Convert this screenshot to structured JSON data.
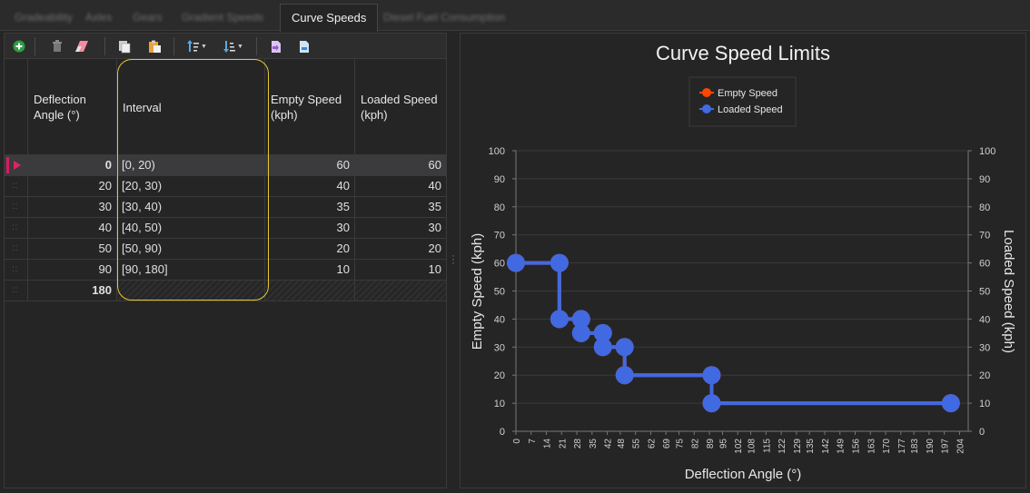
{
  "tabs": [
    {
      "label": "Gradeability",
      "active": false
    },
    {
      "label": "Axles",
      "active": false
    },
    {
      "label": "Gears",
      "active": false
    },
    {
      "label": "Gradient Speeds",
      "active": false
    },
    {
      "label": "Curve Speeds",
      "active": true
    },
    {
      "label": "Diesel Fuel Consumption",
      "active": false
    }
  ],
  "toolbar": {
    "icons": [
      "add-icon",
      "delete-icon",
      "eraser-icon",
      "copy-icon",
      "paste-icon",
      "sort-ascending-icon",
      "sort-descending-icon",
      "import-icon",
      "export-icon"
    ]
  },
  "grid": {
    "columns": [
      "Deflection Angle (°)",
      "Interval",
      "Empty Speed (kph)",
      "Loaded Speed (kph)"
    ],
    "rows": [
      {
        "angle": "0",
        "interval": "[0, 20)",
        "empty": "60",
        "loaded": "60"
      },
      {
        "angle": "20",
        "interval": "[20, 30)",
        "empty": "40",
        "loaded": "40"
      },
      {
        "angle": "30",
        "interval": "[30, 40)",
        "empty": "35",
        "loaded": "35"
      },
      {
        "angle": "40",
        "interval": "[40, 50)",
        "empty": "30",
        "loaded": "30"
      },
      {
        "angle": "50",
        "interval": "[50, 90)",
        "empty": "20",
        "loaded": "20"
      },
      {
        "angle": "90",
        "interval": "[90, 180]",
        "empty": "10",
        "loaded": "10"
      }
    ],
    "new_row_angle": "180",
    "selected_row": 0
  },
  "colors": {
    "accent": "#d81b60",
    "highlight": "#e6c830",
    "empty_series": "#ff4500",
    "loaded_series": "#4169e1"
  },
  "chart_data": {
    "type": "line",
    "title": "Curve Speed Limits",
    "xlabel": "Deflection Angle (°)",
    "ylabel": "Empty Speed (kph)",
    "y2label": "Loaded Speed (kph)",
    "xlim": [
      0,
      208
    ],
    "ylim": [
      0,
      100
    ],
    "x_ticks": [
      "0",
      "7",
      "14",
      "21",
      "28",
      "35",
      "42",
      "48",
      "55",
      "62",
      "69",
      "75",
      "82",
      "89",
      "95",
      "102",
      "108",
      "115",
      "122",
      "129",
      "135",
      "142",
      "149",
      "156",
      "163",
      "170",
      "177",
      "183",
      "190",
      "197",
      "204"
    ],
    "y_ticks": [
      0,
      10,
      20,
      30,
      40,
      50,
      60,
      70,
      80,
      90,
      100
    ],
    "legend_position": "top-center",
    "grid": true,
    "series": [
      {
        "name": "Empty Speed",
        "color": "#ff4500",
        "x": [
          0,
          20,
          20,
          30,
          30,
          40,
          40,
          50,
          50,
          90,
          90,
          200
        ],
        "y": [
          60,
          60,
          40,
          40,
          35,
          35,
          30,
          30,
          20,
          20,
          10,
          10
        ]
      },
      {
        "name": "Loaded Speed",
        "color": "#4169e1",
        "x": [
          0,
          20,
          20,
          30,
          30,
          40,
          40,
          50,
          50,
          90,
          90,
          200
        ],
        "y": [
          60,
          60,
          40,
          40,
          35,
          35,
          30,
          30,
          20,
          20,
          10,
          10
        ]
      }
    ]
  }
}
